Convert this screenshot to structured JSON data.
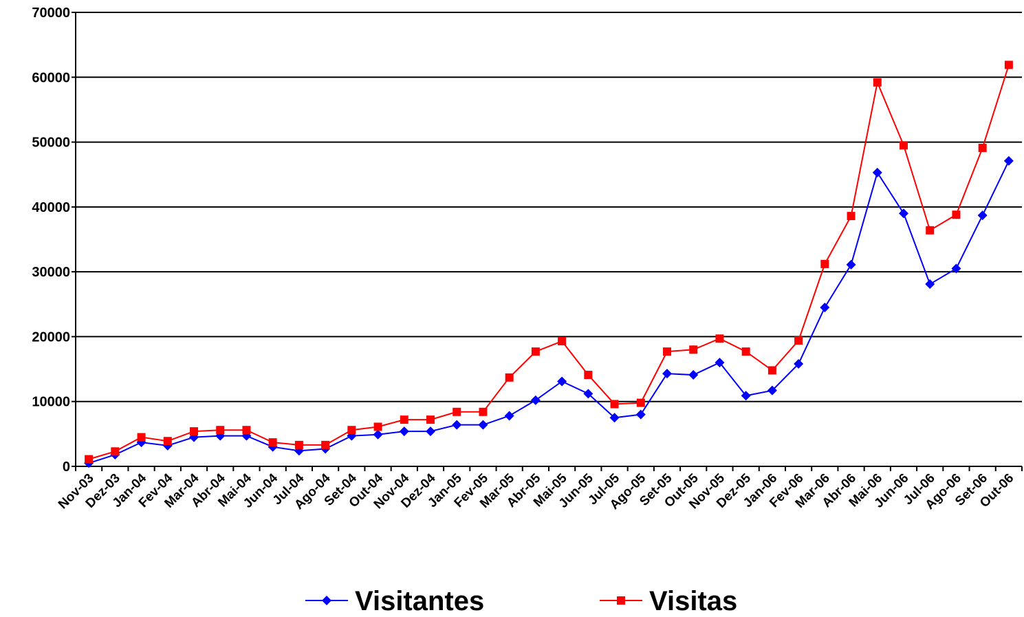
{
  "chart_data": {
    "type": "line",
    "categories": [
      "Nov-03",
      "Dez-03",
      "Jan-04",
      "Fev-04",
      "Mar-04",
      "Abr-04",
      "Mai-04",
      "Jun-04",
      "Jul-04",
      "Ago-04",
      "Set-04",
      "Out-04",
      "Nov-04",
      "Dez-04",
      "Jan-05",
      "Fev-05",
      "Mar-05",
      "Abr-05",
      "Mai-05",
      "Jun-05",
      "Jul-05",
      "Ago-05",
      "Set-05",
      "Out-05",
      "Nov-05",
      "Dez-05",
      "Jan-06",
      "Fev-06",
      "Mar-06",
      "Abr-06",
      "Mai-06",
      "Jun-06",
      "Jul-06",
      "Ago-06",
      "Set-06",
      "Out-06"
    ],
    "series": [
      {
        "name": "Visitantes",
        "color": "#0000ff",
        "marker": "diamond",
        "values": [
          500,
          1800,
          3700,
          3200,
          4500,
          4700,
          4700,
          3000,
          2400,
          2700,
          4700,
          4900,
          5400,
          5400,
          6400,
          6400,
          7800,
          10200,
          13100,
          11200,
          7500,
          8000,
          14300,
          14100,
          16000,
          10900,
          11700,
          15800,
          24500,
          31100,
          45300,
          39000,
          28100,
          30500,
          38700,
          47100
        ]
      },
      {
        "name": "Visitas",
        "color": "#ff0000",
        "marker": "square",
        "values": [
          1100,
          2300,
          4500,
          3900,
          5400,
          5600,
          5600,
          3700,
          3300,
          3300,
          5600,
          6100,
          7200,
          7200,
          8400,
          8400,
          13700,
          17700,
          19300,
          14100,
          9600,
          9800,
          17700,
          18000,
          19700,
          17700,
          14800,
          19400,
          31200,
          38600,
          59200,
          49500,
          36400,
          38800,
          49100,
          61900
        ]
      }
    ],
    "ylim": [
      0,
      70000
    ],
    "yticks": [
      0,
      10000,
      20000,
      30000,
      40000,
      50000,
      60000,
      70000
    ],
    "grid": true,
    "legend": "bottom"
  }
}
